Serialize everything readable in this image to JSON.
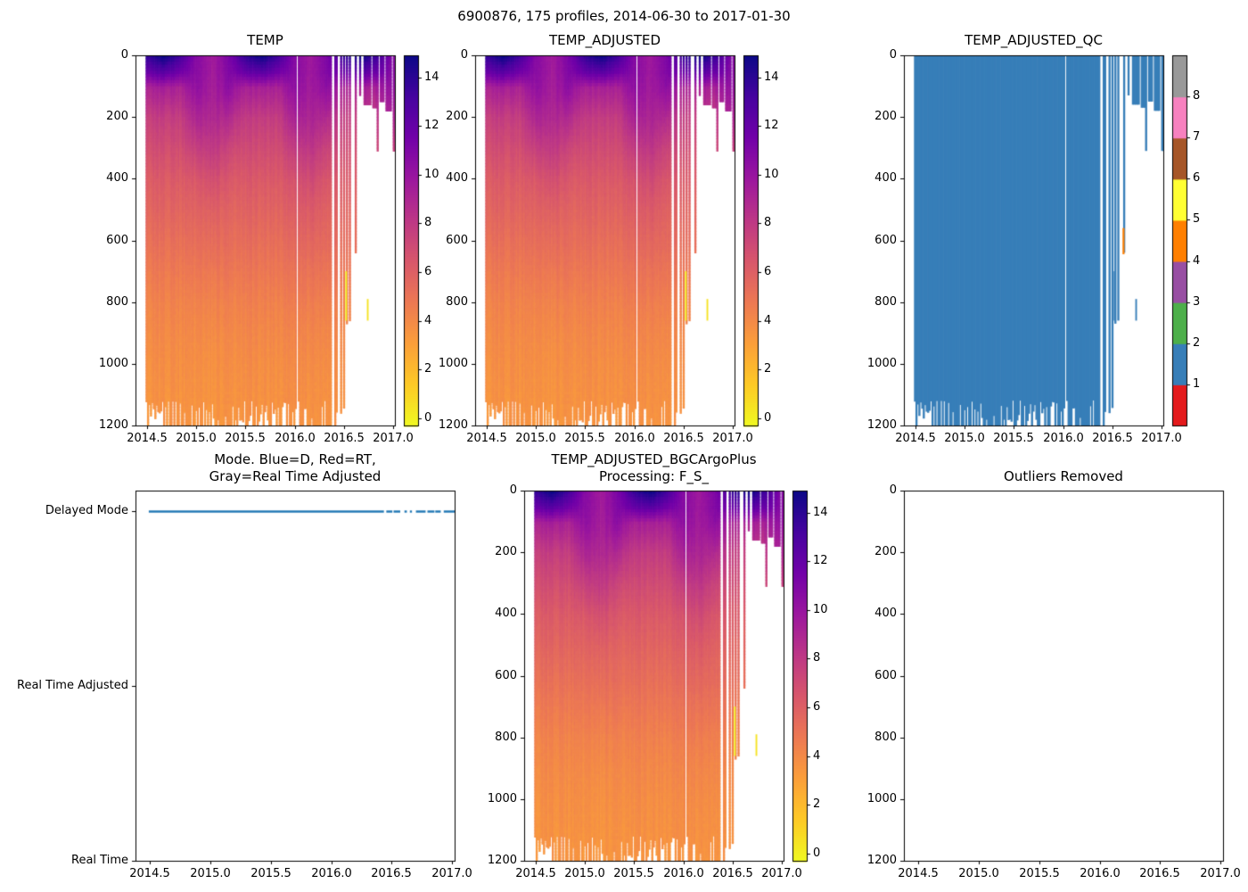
{
  "figure_title": "6900876, 175 profiles, 2014-06-30 to 2017-01-30",
  "colors": {
    "background": "#ffffff",
    "axes": "#000000",
    "qc_fill": "#377eb8",
    "mode_line": "#1f77b4",
    "plasma_stops": [
      "#0d0887",
      "#46039f",
      "#7201a8",
      "#9c179e",
      "#bd3786",
      "#d8576b",
      "#ed7953",
      "#fb9f3a",
      "#fdca26",
      "#f0f921"
    ],
    "set1": [
      "#e41a1c",
      "#377eb8",
      "#4daf4a",
      "#984ea3",
      "#ff7f00",
      "#ffff33",
      "#a65628",
      "#f781bf",
      "#999999"
    ]
  },
  "axes_shared": {
    "xlim": [
      2014.38,
      2017.02
    ],
    "x_tick_values": [
      2014.5,
      2015.0,
      2015.5,
      2016.0,
      2016.5,
      2017.0
    ],
    "x_tick_labels": [
      "2014.5",
      "2015.0",
      "2015.5",
      "2016.0",
      "2016.5",
      "2017.0"
    ],
    "depth_lim": [
      0,
      1200
    ],
    "depth_tick_values": [
      0,
      200,
      400,
      600,
      800,
      1000,
      1200
    ],
    "depth_tick_labels": [
      "0",
      "200",
      "400",
      "600",
      "800",
      "1000",
      "1200"
    ]
  },
  "chart_data": [
    {
      "key": "TEMP",
      "type": "heatmap",
      "title": "TEMP",
      "colormap": "plasma_r",
      "colorbar": {
        "range": [
          -0.3,
          14.9
        ],
        "tick_values": [
          0,
          2,
          4,
          6,
          8,
          10,
          12,
          14
        ],
        "tick_labels": [
          "0",
          "2",
          "4",
          "6",
          "8",
          "10",
          "12",
          "14"
        ]
      },
      "profiles": {
        "count": 175,
        "t_start": 2014.49,
        "t_end": 2017.08
      },
      "grid": {
        "times": [
          2014.5,
          2014.67,
          2014.83,
          2015.0,
          2015.17,
          2015.33,
          2015.5,
          2015.67,
          2015.83,
          2016.0,
          2016.17,
          2016.33,
          2016.5,
          2016.67,
          2016.83,
          2017.0,
          2017.08
        ],
        "depths": [
          0,
          50,
          100,
          200,
          300,
          400,
          500,
          600,
          700,
          800,
          900,
          1000,
          1100,
          1200
        ],
        "values": [
          [
            13.7,
            11.9,
            9.2,
            7.7,
            6.9,
            6.2,
            5.7,
            5.2,
            4.7,
            4.3,
            4.0,
            3.8,
            3.65,
            3.5
          ],
          [
            14.8,
            12.5,
            9.4,
            7.7,
            6.9,
            6.2,
            5.7,
            5.2,
            4.7,
            4.3,
            4.0,
            3.8,
            3.65,
            3.5
          ],
          [
            13.3,
            11.6,
            9.1,
            7.7,
            6.9,
            6.2,
            5.7,
            5.2,
            4.7,
            4.3,
            4.0,
            3.8,
            3.65,
            3.5
          ],
          [
            10.7,
            10.6,
            10.3,
            9.0,
            7.6,
            6.4,
            5.8,
            5.3,
            4.8,
            4.35,
            4.0,
            3.8,
            3.65,
            3.5
          ],
          [
            9.6,
            9.6,
            9.5,
            9.0,
            8.1,
            7.0,
            6.1,
            5.5,
            4.9,
            4.4,
            4.05,
            3.8,
            3.65,
            3.5
          ],
          [
            11.1,
            10.9,
            10.4,
            8.7,
            7.2,
            6.3,
            5.7,
            5.3,
            4.8,
            4.35,
            4.0,
            3.8,
            3.65,
            3.5
          ],
          [
            13.7,
            11.9,
            9.2,
            7.8,
            7.0,
            6.3,
            5.8,
            5.3,
            4.8,
            4.4,
            4.1,
            3.85,
            3.7,
            3.55
          ],
          [
            14.8,
            12.5,
            9.4,
            7.8,
            7.0,
            6.3,
            5.8,
            5.3,
            4.85,
            4.4,
            4.1,
            3.85,
            3.7,
            3.55
          ],
          [
            13.3,
            11.6,
            9.2,
            7.8,
            7.0,
            6.3,
            5.8,
            5.3,
            4.85,
            4.4,
            4.1,
            3.85,
            3.7,
            3.55
          ],
          [
            10.7,
            10.6,
            10.3,
            9.1,
            7.7,
            6.6,
            6.0,
            5.5,
            4.95,
            4.5,
            4.15,
            3.9,
            3.75,
            3.6
          ],
          [
            9.7,
            9.7,
            9.6,
            9.1,
            8.2,
            7.1,
            6.3,
            5.7,
            5.1,
            4.6,
            4.2,
            3.95,
            3.75,
            3.6
          ],
          [
            11.1,
            11.0,
            10.5,
            8.8,
            7.4,
            6.5,
            5.9,
            5.5,
            5.0,
            4.5,
            4.15,
            3.9,
            3.75,
            3.6
          ],
          [
            13.7,
            11.9,
            9.3,
            7.9,
            7.1,
            6.4,
            5.9,
            5.5,
            5.0,
            4.55,
            4.2,
            3.95,
            3.8,
            3.65
          ],
          [
            14.8,
            12.6,
            9.5,
            7.9,
            7.1,
            6.4,
            5.9,
            5.5,
            5.0,
            4.55,
            4.2,
            3.95,
            3.8,
            3.65
          ],
          [
            13.4,
            11.7,
            9.3,
            7.9,
            7.1,
            6.4,
            5.9,
            5.5,
            5.0,
            4.55,
            4.2,
            3.95,
            3.8,
            3.65
          ],
          [
            10.8,
            10.7,
            10.4,
            9.1,
            7.7,
            6.6,
            6.0,
            5.5,
            5.0,
            4.55,
            4.2,
            3.95,
            3.8,
            3.65
          ],
          [
            10.1,
            10.0,
            9.9,
            9.1,
            8.0,
            6.9,
            6.1,
            5.6,
            5.05,
            4.6,
            4.2,
            3.95,
            3.8,
            3.65
          ]
        ]
      },
      "presence": [
        {
          "t0": 2014.49,
          "t1": 2016.015,
          "zmax": 1200
        },
        {
          "t0": 2016.03,
          "t1": 2016.38,
          "zmax": 1200
        },
        {
          "t0": 2016.4,
          "t1": 2016.435,
          "zmax": 1200
        },
        {
          "t0": 2016.455,
          "t1": 2016.475,
          "zmax": 1160
        },
        {
          "t0": 2016.49,
          "t1": 2016.505,
          "zmax": 1100
        },
        {
          "t0": 2016.515,
          "t1": 2016.535,
          "zmax": 870
        },
        {
          "t0": 2016.55,
          "t1": 2016.57,
          "zmax": 860
        },
        {
          "t0": 2016.605,
          "t1": 2016.625,
          "zmax": 640
        },
        {
          "t0": 2016.65,
          "t1": 2016.667,
          "zmax": 130
        },
        {
          "t0": 2016.7,
          "t1": 2016.78,
          "zmax": 160
        },
        {
          "t0": 2016.795,
          "t1": 2016.835,
          "zmax": 170
        },
        {
          "t0": 2016.838,
          "t1": 2016.853,
          "zmax": 310
        },
        {
          "t0": 2016.86,
          "t1": 2016.905,
          "zmax": 150
        },
        {
          "t0": 2016.93,
          "t1": 2016.99,
          "zmax": 180
        },
        {
          "t0": 2016.995,
          "t1": 2017.08,
          "zmax": 310
        }
      ],
      "outlier_streaks": [
        {
          "t0": 2016.515,
          "t1": 2016.532,
          "z0": 700,
          "z1": 860,
          "value": 0.1
        },
        {
          "t0": 2016.735,
          "t1": 2016.752,
          "z0": 790,
          "z1": 860,
          "value": 0.5
        }
      ]
    },
    {
      "key": "TEMP_ADJUSTED",
      "type": "heatmap",
      "title": "TEMP_ADJUSTED",
      "colormap": "plasma_r",
      "data_same_as": "TEMP",
      "colorbar": {
        "range": [
          -0.3,
          14.9
        ],
        "tick_values": [
          0,
          2,
          4,
          6,
          8,
          10,
          12,
          14
        ],
        "tick_labels": [
          "0",
          "2",
          "4",
          "6",
          "8",
          "10",
          "12",
          "14"
        ]
      }
    },
    {
      "key": "TEMP_ADJUSTED_QC",
      "type": "qc_heatmap",
      "title": "TEMP_ADJUSTED_QC",
      "data_same_as": "TEMP",
      "fill_flag": 1,
      "flag_overrides": [
        {
          "t0": 2016.605,
          "t1": 2016.625,
          "z0": 560,
          "z1": 645,
          "flag": 4
        }
      ],
      "colorbar": {
        "type": "discrete",
        "palette": "set1",
        "range": [
          0,
          9
        ],
        "tick_values": [
          1,
          2,
          3,
          4,
          5,
          6,
          7,
          8
        ],
        "tick_labels": [
          "1",
          "2",
          "3",
          "4",
          "5",
          "6",
          "7",
          "8"
        ]
      }
    },
    {
      "key": "MODE",
      "type": "categorical_line",
      "title": "Mode. Blue=D, Red=RT,\nGray=Real Time Adjusted",
      "categories": [
        "Delayed Mode",
        "Real Time Adjusted",
        "Real Time"
      ],
      "line_category": "Delayed Mode",
      "line_color": "#1f77b4",
      "ylim": [
        0,
        2.12
      ],
      "segments": [
        [
          2014.49,
          2016.435
        ],
        [
          2016.455,
          2016.505
        ],
        [
          2016.515,
          2016.57
        ],
        [
          2016.605,
          2016.625
        ],
        [
          2016.65,
          2016.667
        ],
        [
          2016.7,
          2016.78
        ],
        [
          2016.795,
          2016.853
        ],
        [
          2016.86,
          2016.905
        ],
        [
          2016.93,
          2017.02
        ]
      ]
    },
    {
      "key": "BGC",
      "type": "heatmap",
      "title": "TEMP_ADJUSTED_BGCArgoPlus\nProcessing: F_S_",
      "colormap": "plasma_r",
      "data_same_as": "TEMP",
      "colorbar": {
        "range": [
          -0.3,
          14.9
        ],
        "tick_values": [
          0,
          2,
          4,
          6,
          8,
          10,
          12,
          14
        ],
        "tick_labels": [
          "0",
          "2",
          "4",
          "6",
          "8",
          "10",
          "12",
          "14"
        ]
      }
    },
    {
      "key": "OUTLIERS",
      "type": "empty",
      "title": "Outliers Removed"
    }
  ]
}
